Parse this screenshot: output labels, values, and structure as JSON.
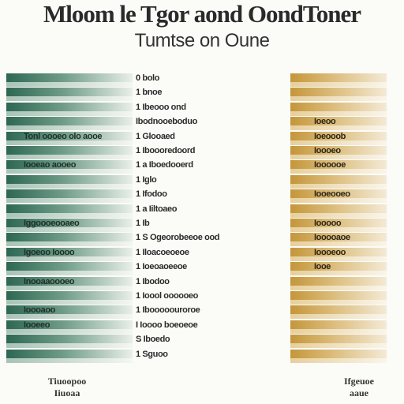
{
  "header": {
    "title": "Mloom le Tgor aond OondToner",
    "subtitle": "Tumtse on Oune"
  },
  "rows": [
    {
      "middle": "0 bolo"
    },
    {
      "middle": "1 bnoe"
    },
    {
      "middle": "1 Ibeooo ond"
    },
    {
      "middle": "Ibodnooeboduo",
      "right": "Ioeoo"
    },
    {
      "left": "Tonl oooeo olo aooe",
      "middle": "1 Glooaed",
      "right": "Ioeooob"
    },
    {
      "middle": "1 Iboooredoord",
      "right": "Ioooeo"
    },
    {
      "left": "Iooeao aooeo",
      "middle": "1 a Iboedooerd",
      "right": "Ioooooe"
    },
    {
      "middle": "1 Iglo"
    },
    {
      "middle": "1 Ifodoo",
      "right": "Iooeooeo"
    },
    {
      "middle": "1 a Iiltoaeo"
    },
    {
      "left": "Iggoooeooaeo",
      "middle": "1 Ib",
      "right": "Iooooo"
    },
    {
      "middle": "1 S Ogeorobeeoe ood",
      "right": "Iooooaoe"
    },
    {
      "left": "Igoeoo Ioooo",
      "middle": "1 Iloacoeoeoe",
      "right": "Ioooeoo"
    },
    {
      "middle": "1 Ioeoaoeeoe",
      "right": "Iooe"
    },
    {
      "left": "Inooaaoooeo",
      "middle": "1 Ibodoo"
    },
    {
      "middle": "1 Ioool oooooeo"
    },
    {
      "left": "Ioooaoo",
      "middle": "1 Ibooooouroroe"
    },
    {
      "left": "Iooeeo",
      "middle": "I Ioooo boeoeoe"
    },
    {
      "middle": "S Iboedo"
    },
    {
      "middle": "1 Sguoo"
    }
  ],
  "footer": {
    "left": [
      "Tiuoopoo",
      "Iiuoaa"
    ],
    "right": [
      "Ifgeuoe",
      "aaue"
    ]
  }
}
